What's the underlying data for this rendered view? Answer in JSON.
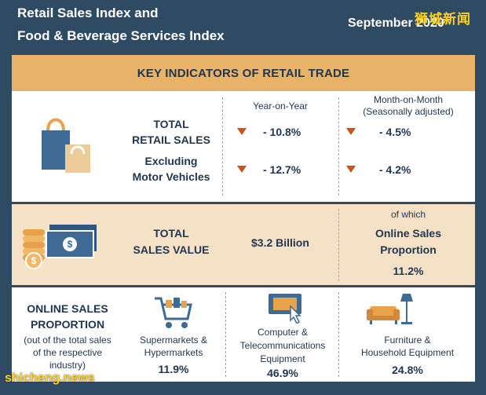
{
  "header": {
    "title_line1": "Retail Sales Index and",
    "title_line2": "Food & Beverage Services Index",
    "date": "September 2020",
    "watermark_top": "狮城新闻",
    "watermark_bottom": "shicheng.news"
  },
  "banner": {
    "title": "KEY INDICATORS OF RETAIL TRADE"
  },
  "retail": {
    "col_yoy": "Year-on-Year",
    "col_mom_line1": "Month-on-Month",
    "col_mom_line2": "(Seasonally adjusted)",
    "rows": [
      {
        "label_line1": "TOTAL",
        "label_line2": "RETAIL SALES",
        "yoy": "- 10.8%",
        "mom": "- 4.5%"
      },
      {
        "label_line1": "Excluding",
        "label_line2": "Motor Vehicles",
        "yoy": "- 12.7%",
        "mom": "- 4.2%"
      }
    ],
    "icon": "shopping-bags-icon",
    "arrow_icon": "down-triangle-icon"
  },
  "sales_value": {
    "label_line1": "TOTAL",
    "label_line2": "SALES VALUE",
    "value": "$3.2 Billion",
    "of_which": "of which",
    "online_line1": "Online Sales",
    "online_line2": "Proportion",
    "online_value": "11.2%",
    "icon": "money-stack-icon"
  },
  "online": {
    "title_line1": "ONLINE SALES",
    "title_line2": "PROPORTION",
    "note_line1": "(out of the total sales",
    "note_line2": "of the respective",
    "note_line3": "industry)",
    "categories": [
      {
        "line1": "Supermarkets &",
        "line2": "Hypermarkets",
        "line3": "",
        "value": "11.9%",
        "icon": "shopping-cart-icon"
      },
      {
        "line1": "Computer &",
        "line2": "Telecommunications",
        "line3": "Equipment",
        "value": "46.9%",
        "icon": "computer-icon"
      },
      {
        "line1": "Furniture &",
        "line2": "Household Equipment",
        "line3": "",
        "value": "24.8%",
        "icon": "sofa-lamp-icon"
      }
    ]
  },
  "colors": {
    "background": "#2f4a63",
    "banner": "#e8b268",
    "beige_row": "#f5e2c6",
    "text": "#1f3550",
    "arrow": "#c8541a",
    "icon_blue": "#3f6a93",
    "icon_orange": "#e8a24a"
  }
}
